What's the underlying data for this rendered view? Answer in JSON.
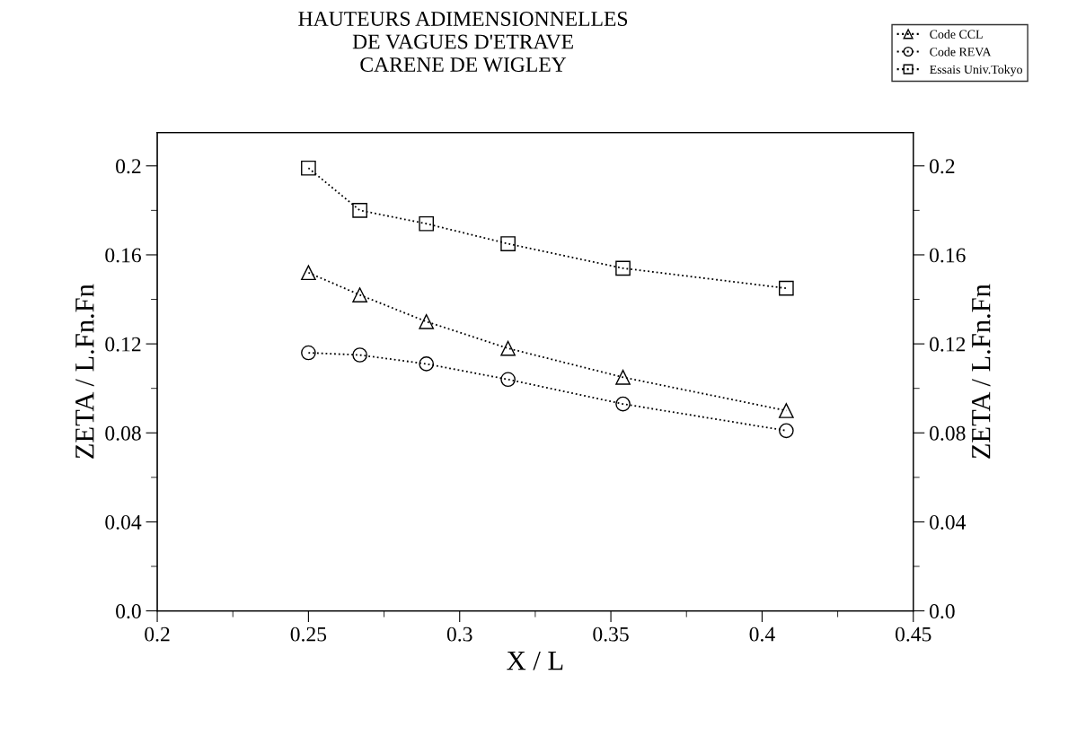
{
  "chart_data": {
    "type": "line",
    "title": "HAUTEURS ADIMENSIONNELLES\nDE VAGUES D'ETRAVE\nCARENE DE WIGLEY",
    "xlabel": "X / L",
    "ylabel": "ZETA / L.Fn.Fn",
    "y2label": "ZETA / L.Fn.Fn",
    "x": [
      0.25,
      0.267,
      0.289,
      0.316,
      0.354,
      0.408
    ],
    "series": [
      {
        "name": "Code CCL",
        "color": "#000000",
        "marker": "triangle",
        "values": [
          0.152,
          0.142,
          0.13,
          0.118,
          0.105,
          0.09
        ]
      },
      {
        "name": "Code REVA",
        "color": "#000000",
        "marker": "circle",
        "values": [
          0.116,
          0.115,
          0.111,
          0.104,
          0.093,
          0.081
        ]
      },
      {
        "name": "Essais Univ.Tokyo",
        "color": "#000000",
        "marker": "square",
        "values": [
          0.199,
          0.18,
          0.174,
          0.165,
          0.154,
          0.145
        ]
      }
    ],
    "xlim": [
      0.2,
      0.45
    ],
    "xticks": [
      0.2,
      0.25,
      0.3,
      0.35,
      0.4,
      0.45
    ],
    "ylim": [
      0.0,
      0.215
    ],
    "yticks": [
      {
        "value": 0.0,
        "label": "0.0"
      },
      0.04,
      0.08,
      0.12,
      0.16,
      0.2
    ],
    "y2lim": [
      0.0,
      0.215
    ],
    "y2ticks": [
      {
        "value": 0.0,
        "label": "0.0"
      },
      0.04,
      0.08,
      0.12,
      0.16,
      0.2
    ],
    "line_style": "dotted",
    "grid": false,
    "legend": "top right"
  }
}
